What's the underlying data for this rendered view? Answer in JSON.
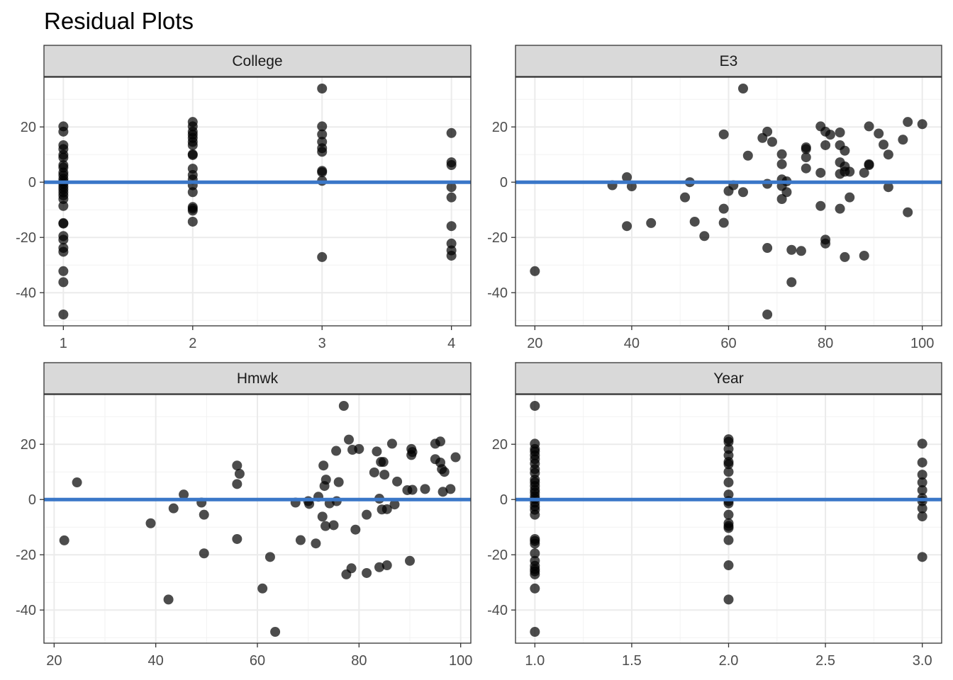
{
  "title": "Residual Plots",
  "colors": {
    "points": "#000000",
    "reference_line": "#3a77c8",
    "strip": "#d9d9d9"
  },
  "chart_data": [
    {
      "type": "scatter",
      "facet": "College",
      "xlim": [
        0.85,
        4.15
      ],
      "ylim": [
        -52,
        38
      ],
      "xticks": [
        1,
        2,
        3,
        4
      ],
      "xtick_labels": [
        "1",
        "2",
        "3",
        "4"
      ],
      "yticks": [
        -40,
        -20,
        0,
        20
      ],
      "ytick_labels": [
        "-40",
        "-20",
        "0",
        "20"
      ],
      "hline": 0,
      "grid": true,
      "points": [
        [
          1,
          20.2
        ],
        [
          1,
          18.3
        ],
        [
          1,
          13.4
        ],
        [
          1,
          12.0
        ],
        [
          1,
          9.9
        ],
        [
          1,
          8.9
        ],
        [
          1,
          6.2
        ],
        [
          1,
          5.3
        ],
        [
          1,
          3.5
        ],
        [
          1,
          2.5
        ],
        [
          1,
          1.2
        ],
        [
          1,
          0.3
        ],
        [
          1,
          -0.6
        ],
        [
          1,
          -1.6
        ],
        [
          1,
          -2.6
        ],
        [
          1,
          -3.7
        ],
        [
          1,
          -4.8
        ],
        [
          1,
          -6.1
        ],
        [
          1,
          -8.6
        ],
        [
          1,
          -14.8
        ],
        [
          1,
          -15.0
        ],
        [
          1,
          -19.5
        ],
        [
          1,
          -20.8
        ],
        [
          1,
          -23.8
        ],
        [
          1,
          -25.2
        ],
        [
          1,
          -32.2
        ],
        [
          1,
          -36.2
        ],
        [
          1,
          -47.9
        ],
        [
          2,
          21.8
        ],
        [
          2,
          20.2
        ],
        [
          2,
          18.3
        ],
        [
          2,
          17.2
        ],
        [
          2,
          16.0
        ],
        [
          2,
          14.6
        ],
        [
          2,
          13.4
        ],
        [
          2,
          10.1
        ],
        [
          2,
          9.8
        ],
        [
          2,
          4.9
        ],
        [
          2,
          2.6
        ],
        [
          2,
          1.0
        ],
        [
          2,
          -1.1
        ],
        [
          2,
          -3.6
        ],
        [
          2,
          -9.0
        ],
        [
          2,
          -9.6
        ],
        [
          2,
          -10.3
        ],
        [
          2,
          -14.3
        ],
        [
          3,
          33.9
        ],
        [
          3,
          20.2
        ],
        [
          3,
          17.3
        ],
        [
          3,
          14.6
        ],
        [
          3,
          12.3
        ],
        [
          3,
          11.0
        ],
        [
          3,
          4.1
        ],
        [
          3,
          3.6
        ],
        [
          3,
          0.5
        ],
        [
          3,
          -27.1
        ],
        [
          4,
          17.8
        ],
        [
          4,
          7.2
        ],
        [
          4,
          6.2
        ],
        [
          4,
          -1.8
        ],
        [
          4,
          -5.5
        ],
        [
          4,
          -15.9
        ],
        [
          4,
          -22.2
        ],
        [
          4,
          -24.7
        ],
        [
          4,
          -26.6
        ]
      ]
    },
    {
      "type": "scatter",
      "facet": "E3",
      "xlim": [
        16,
        104
      ],
      "ylim": [
        -52,
        38
      ],
      "xticks": [
        20,
        40,
        60,
        80,
        100
      ],
      "xtick_labels": [
        "20",
        "40",
        "60",
        "80",
        "100"
      ],
      "yticks": [
        -40,
        -20,
        0,
        20
      ],
      "ytick_labels": [
        "-40",
        "-20",
        "0",
        "20"
      ],
      "hline": 0,
      "grid": true,
      "points": [
        [
          20,
          -32.2
        ],
        [
          36,
          -1.1
        ],
        [
          39,
          1.8
        ],
        [
          39,
          -15.9
        ],
        [
          40,
          -1.5
        ],
        [
          44,
          -14.8
        ],
        [
          51,
          -5.5
        ],
        [
          52,
          0.0
        ],
        [
          53,
          -14.3
        ],
        [
          55,
          -19.5
        ],
        [
          59,
          17.3
        ],
        [
          59,
          -9.6
        ],
        [
          59,
          -14.7
        ],
        [
          60,
          -3.2
        ],
        [
          61,
          -1.1
        ],
        [
          63,
          33.9
        ],
        [
          63,
          -3.6
        ],
        [
          64,
          9.6
        ],
        [
          67,
          16.0
        ],
        [
          68,
          18.3
        ],
        [
          68,
          -0.6
        ],
        [
          68,
          -23.8
        ],
        [
          68,
          -47.9
        ],
        [
          69,
          14.6
        ],
        [
          71,
          10.1
        ],
        [
          71,
          6.5
        ],
        [
          71,
          1.0
        ],
        [
          71,
          -1.4
        ],
        [
          71,
          -6.1
        ],
        [
          72,
          0.3
        ],
        [
          72,
          -3.6
        ],
        [
          73,
          -24.5
        ],
        [
          73,
          -36.2
        ],
        [
          75,
          -24.9
        ],
        [
          76,
          12.6
        ],
        [
          76,
          12.0
        ],
        [
          76,
          9.0
        ],
        [
          76,
          5.0
        ],
        [
          79,
          20.2
        ],
        [
          79,
          3.4
        ],
        [
          79,
          -8.6
        ],
        [
          80,
          18.3
        ],
        [
          80,
          13.4
        ],
        [
          80,
          -20.8
        ],
        [
          80,
          -22.2
        ],
        [
          81,
          17.2
        ],
        [
          83,
          18.0
        ],
        [
          83,
          13.4
        ],
        [
          83,
          7.2
        ],
        [
          83,
          3.0
        ],
        [
          83,
          -9.6
        ],
        [
          84,
          11.4
        ],
        [
          84,
          5.7
        ],
        [
          84,
          3.8
        ],
        [
          84,
          -27.1
        ],
        [
          85,
          3.8
        ],
        [
          85,
          -5.5
        ],
        [
          88,
          3.4
        ],
        [
          88,
          -26.6
        ],
        [
          89,
          20.2
        ],
        [
          89,
          6.2
        ],
        [
          89,
          6.5
        ],
        [
          91,
          17.6
        ],
        [
          92,
          13.6
        ],
        [
          93,
          10.0
        ],
        [
          93,
          -1.8
        ],
        [
          96,
          15.4
        ],
        [
          97,
          21.8
        ],
        [
          97,
          -10.9
        ],
        [
          100,
          21.0
        ]
      ]
    },
    {
      "type": "scatter",
      "facet": "Hmwk",
      "xlim": [
        18,
        102
      ],
      "ylim": [
        -52,
        38
      ],
      "xticks": [
        20,
        40,
        60,
        80,
        100
      ],
      "xtick_labels": [
        "20",
        "40",
        "60",
        "80",
        "100"
      ],
      "yticks": [
        -40,
        -20,
        0,
        20
      ],
      "ytick_labels": [
        "-40",
        "-20",
        "0",
        "20"
      ],
      "hline": 0,
      "grid": true,
      "points": [
        [
          22,
          -14.8
        ],
        [
          24.5,
          6.2
        ],
        [
          39,
          -8.6
        ],
        [
          42.5,
          -36.2
        ],
        [
          43.5,
          -3.2
        ],
        [
          45.5,
          1.8
        ],
        [
          49,
          -1.1
        ],
        [
          49.5,
          -5.5
        ],
        [
          49.5,
          -19.5
        ],
        [
          56,
          12.3
        ],
        [
          56,
          5.6
        ],
        [
          56,
          -14.3
        ],
        [
          56.5,
          9.3
        ],
        [
          61,
          -32.2
        ],
        [
          62.5,
          -20.8
        ],
        [
          63.5,
          -47.9
        ],
        [
          67.5,
          -1.1
        ],
        [
          68.5,
          -14.7
        ],
        [
          70,
          -0.6
        ],
        [
          70.2,
          -1.6
        ],
        [
          71.5,
          -15.9
        ],
        [
          72,
          1.0
        ],
        [
          72.8,
          -6.2
        ],
        [
          73,
          12.3
        ],
        [
          73.2,
          4.9
        ],
        [
          73.4,
          -9.6
        ],
        [
          73.5,
          7.2
        ],
        [
          74.2,
          -1.4
        ],
        [
          75,
          -9.3
        ],
        [
          75.5,
          17.6
        ],
        [
          75.6,
          -0.6
        ],
        [
          76,
          6.3
        ],
        [
          77,
          33.9
        ],
        [
          77.5,
          -27.1
        ],
        [
          78,
          21.7
        ],
        [
          78.5,
          -24.9
        ],
        [
          78.7,
          18.0
        ],
        [
          79.3,
          -10.9
        ],
        [
          80,
          18.3
        ],
        [
          81.5,
          -26.6
        ],
        [
          81.5,
          -5.5
        ],
        [
          83,
          9.8
        ],
        [
          83.5,
          17.4
        ],
        [
          84,
          0.3
        ],
        [
          84,
          -24.5
        ],
        [
          84.3,
          13.6
        ],
        [
          84.5,
          -3.6
        ],
        [
          84.8,
          13.6
        ],
        [
          85,
          9.0
        ],
        [
          85.5,
          -23.8
        ],
        [
          85.5,
          -3.5
        ],
        [
          86.5,
          20.2
        ],
        [
          87,
          -1.8
        ],
        [
          87.5,
          6.5
        ],
        [
          89.5,
          3.4
        ],
        [
          90,
          -22.2
        ],
        [
          90.3,
          16.1
        ],
        [
          90.3,
          18.3
        ],
        [
          90.5,
          17.2
        ],
        [
          90.5,
          3.5
        ],
        [
          93,
          3.8
        ],
        [
          95,
          20.2
        ],
        [
          95,
          14.6
        ],
        [
          96,
          21.0
        ],
        [
          96,
          13.4
        ],
        [
          96.3,
          11.0
        ],
        [
          96.5,
          2.8
        ],
        [
          96.8,
          10.0
        ],
        [
          98,
          3.8
        ],
        [
          99,
          15.3
        ]
      ]
    },
    {
      "type": "scatter",
      "facet": "Year",
      "xlim": [
        0.9,
        3.1
      ],
      "ylim": [
        -52,
        38
      ],
      "xticks": [
        1.0,
        1.5,
        2.0,
        2.5,
        3.0
      ],
      "xtick_labels": [
        "1.0",
        "1.5",
        "2.0",
        "2.5",
        "3.0"
      ],
      "yticks": [
        -40,
        -20,
        0,
        20
      ],
      "ytick_labels": [
        "-40",
        "-20",
        "0",
        "20"
      ],
      "hline": 0,
      "grid": true,
      "points": [
        [
          1,
          33.9
        ],
        [
          1,
          20.2
        ],
        [
          1,
          18.3
        ],
        [
          1,
          17.4
        ],
        [
          1,
          16.0
        ],
        [
          1,
          14.6
        ],
        [
          1,
          13.0
        ],
        [
          1,
          11.0
        ],
        [
          1,
          9.6
        ],
        [
          1,
          7.2
        ],
        [
          1,
          6.2
        ],
        [
          1,
          4.9
        ],
        [
          1,
          3.5
        ],
        [
          1,
          2.5
        ],
        [
          1,
          1.2
        ],
        [
          1,
          0.2
        ],
        [
          1,
          -1.1
        ],
        [
          1,
          -2.5
        ],
        [
          1,
          -3.7
        ],
        [
          1,
          -5.5
        ],
        [
          1,
          -14.3
        ],
        [
          1,
          -15.0
        ],
        [
          1,
          -16.0
        ],
        [
          1,
          -19.5
        ],
        [
          1,
          -22.2
        ],
        [
          1,
          -24.0
        ],
        [
          1,
          -25.2
        ],
        [
          1,
          -26.0
        ],
        [
          1,
          -27.1
        ],
        [
          1,
          -32.2
        ],
        [
          1,
          -47.9
        ],
        [
          2,
          21.8
        ],
        [
          2,
          20.9
        ],
        [
          2,
          18.3
        ],
        [
          2,
          16.0
        ],
        [
          2,
          13.6
        ],
        [
          2,
          12.8
        ],
        [
          2,
          10.0
        ],
        [
          2,
          6.2
        ],
        [
          2,
          1.8
        ],
        [
          2,
          -0.6
        ],
        [
          2,
          -1.4
        ],
        [
          2,
          -5.5
        ],
        [
          2,
          -8.6
        ],
        [
          2,
          -9.6
        ],
        [
          2,
          -10.3
        ],
        [
          2,
          -14.7
        ],
        [
          2,
          -23.8
        ],
        [
          2,
          -36.2
        ],
        [
          3,
          20.2
        ],
        [
          3,
          13.4
        ],
        [
          3,
          9.0
        ],
        [
          3,
          6.2
        ],
        [
          3,
          3.4
        ],
        [
          3,
          0.5
        ],
        [
          3,
          -0.6
        ],
        [
          3,
          -3.2
        ],
        [
          3,
          -6.1
        ],
        [
          3,
          -20.8
        ]
      ]
    }
  ]
}
